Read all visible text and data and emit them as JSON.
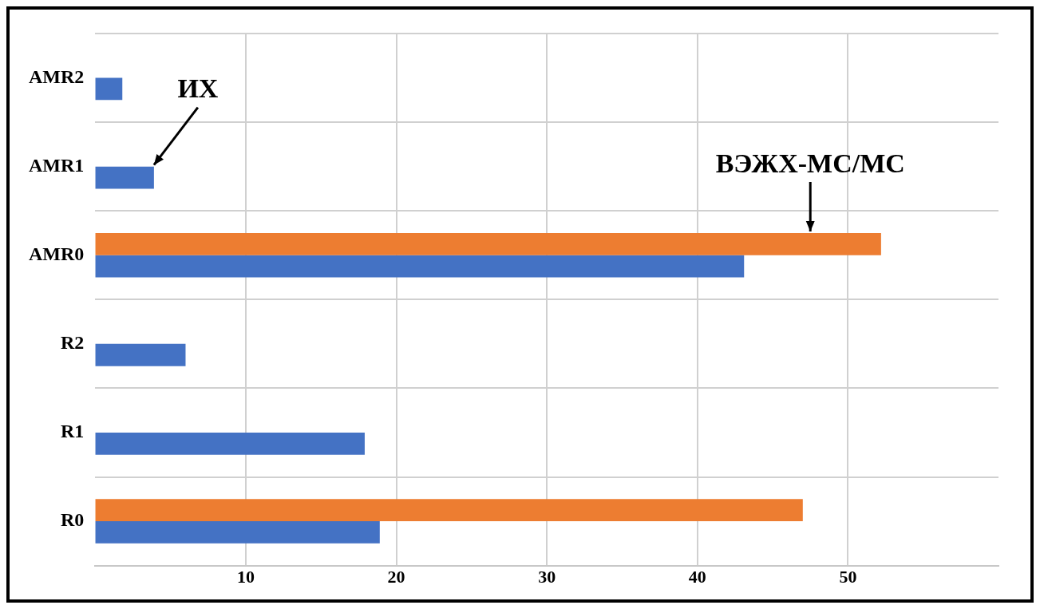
{
  "chart_data": {
    "type": "bar",
    "orientation": "horizontal",
    "categories": [
      "AMR2",
      "AMR1",
      "AMR0",
      "R2",
      "R1",
      "R0"
    ],
    "series": [
      {
        "color": "#ed7d31",
        "values": [
          null,
          null,
          52.2,
          null,
          null,
          47.0
        ]
      },
      {
        "color": "#4472c4",
        "values": [
          1.8,
          3.9,
          43.1,
          6.0,
          17.9,
          18.9
        ]
      }
    ],
    "xlim": [
      0,
      60
    ],
    "xticks": [
      10,
      20,
      30,
      40,
      50
    ],
    "grid": true,
    "legend": false,
    "annotations": [
      {
        "text": "ИХ",
        "x": 3.9,
        "y": "AMR1"
      },
      {
        "text": "ВЭЖХ-МС/МС",
        "x": 47.5,
        "y": "AMR0"
      }
    ]
  }
}
